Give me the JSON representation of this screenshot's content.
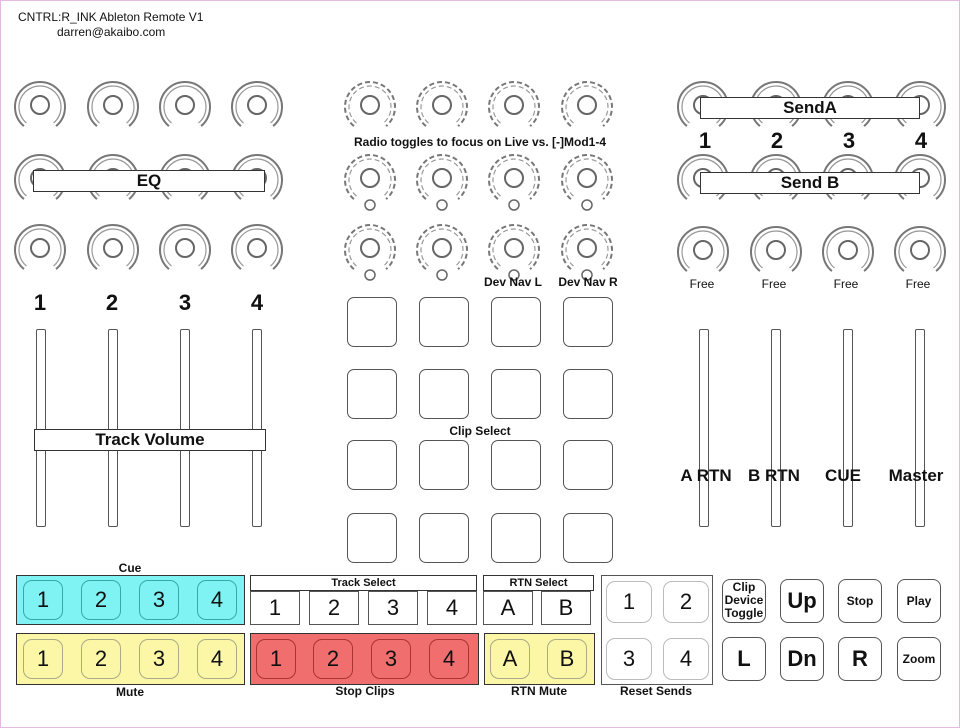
{
  "header": {
    "title": "CNTRL:R_INK Ableton Remote V1",
    "email": "darren@akaibo.com"
  },
  "eq": {
    "label": "EQ"
  },
  "track_numbers": [
    "1",
    "2",
    "3",
    "4"
  ],
  "track_volume": {
    "label": "Track Volume"
  },
  "radio_note": "Radio toggles to focus on Live vs. [-]Mod1-4",
  "dev_nav": {
    "left": "Dev Nav L",
    "right": "Dev Nav R"
  },
  "clip_select": {
    "label": "Clip Select"
  },
  "sends": {
    "a_label": "SendA",
    "b_label": "Send B",
    "numbers": [
      "1",
      "2",
      "3",
      "4"
    ],
    "free_labels": [
      "Free",
      "Free",
      "Free",
      "Free"
    ]
  },
  "return_labels": [
    "A RTN",
    "B RTN",
    "CUE",
    "Master"
  ],
  "cue": {
    "label": "Cue",
    "buttons": [
      "1",
      "2",
      "3",
      "4"
    ]
  },
  "mute": {
    "label": "Mute",
    "buttons": [
      "1",
      "2",
      "3",
      "4"
    ]
  },
  "track_select": {
    "label": "Track Select",
    "buttons": [
      "1",
      "2",
      "3",
      "4"
    ]
  },
  "stop_clips": {
    "label": "Stop Clips",
    "buttons": [
      "1",
      "2",
      "3",
      "4"
    ]
  },
  "rtn_select": {
    "label": "RTN Select",
    "buttons": [
      "A",
      "B"
    ]
  },
  "rtn_mute": {
    "label": "RTN Mute",
    "buttons": [
      "A",
      "B"
    ]
  },
  "reset_sends": {
    "label": "Reset Sends",
    "buttons": [
      "1",
      "2",
      "3",
      "4"
    ]
  },
  "transport": {
    "clip_device_toggle": "Clip Device Toggle",
    "up": "Up",
    "stop": "Stop",
    "play": "Play",
    "left": "L",
    "down": "Dn",
    "right": "R",
    "zoom": "Zoom"
  }
}
